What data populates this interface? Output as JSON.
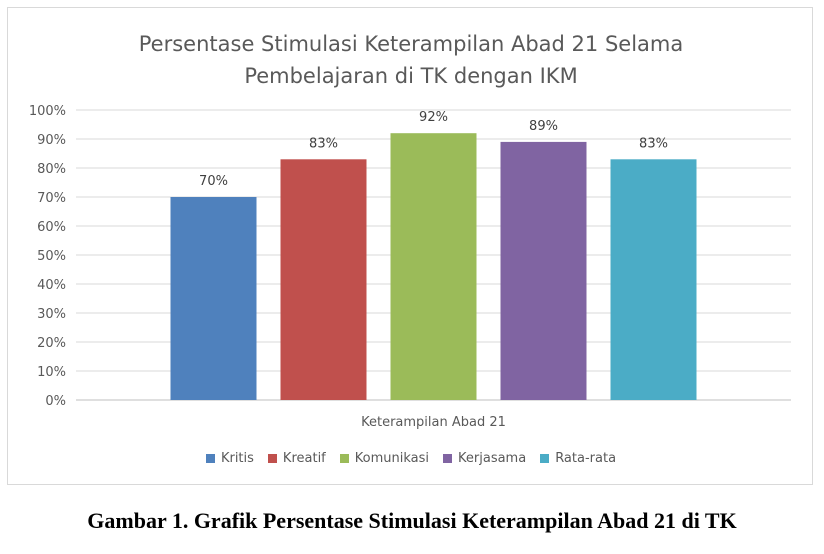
{
  "chart_data": {
    "type": "bar",
    "title_lines": [
      "Persentase Stimulasi Keterampilan Abad 21 Selama",
      "Pembelajaran di TK dengan IKM"
    ],
    "xlabel": "Keterampilan Abad 21",
    "ylabel": "",
    "ylim": [
      0,
      100
    ],
    "yticks": [
      "0%",
      "10%",
      "20%",
      "30%",
      "40%",
      "50%",
      "60%",
      "70%",
      "80%",
      "90%",
      "100%"
    ],
    "grid": true,
    "legend_position": "bottom",
    "series": [
      {
        "name": "Kritis",
        "value": 70,
        "label": "70%",
        "color": "#4f81bd"
      },
      {
        "name": "Kreatif",
        "value": 83,
        "label": "83%",
        "color": "#c0504d"
      },
      {
        "name": "Komunikasi",
        "value": 92,
        "label": "92%",
        "color": "#9bbb59"
      },
      {
        "name": "Kerjasama",
        "value": 89,
        "label": "89%",
        "color": "#8064a2"
      },
      {
        "name": "Rata-rata",
        "value": 83,
        "label": "83%",
        "color": "#4bacc6"
      }
    ]
  },
  "caption": "Gambar 1. Grafik Persentase Stimulasi Keterampilan Abad 21 di TK"
}
